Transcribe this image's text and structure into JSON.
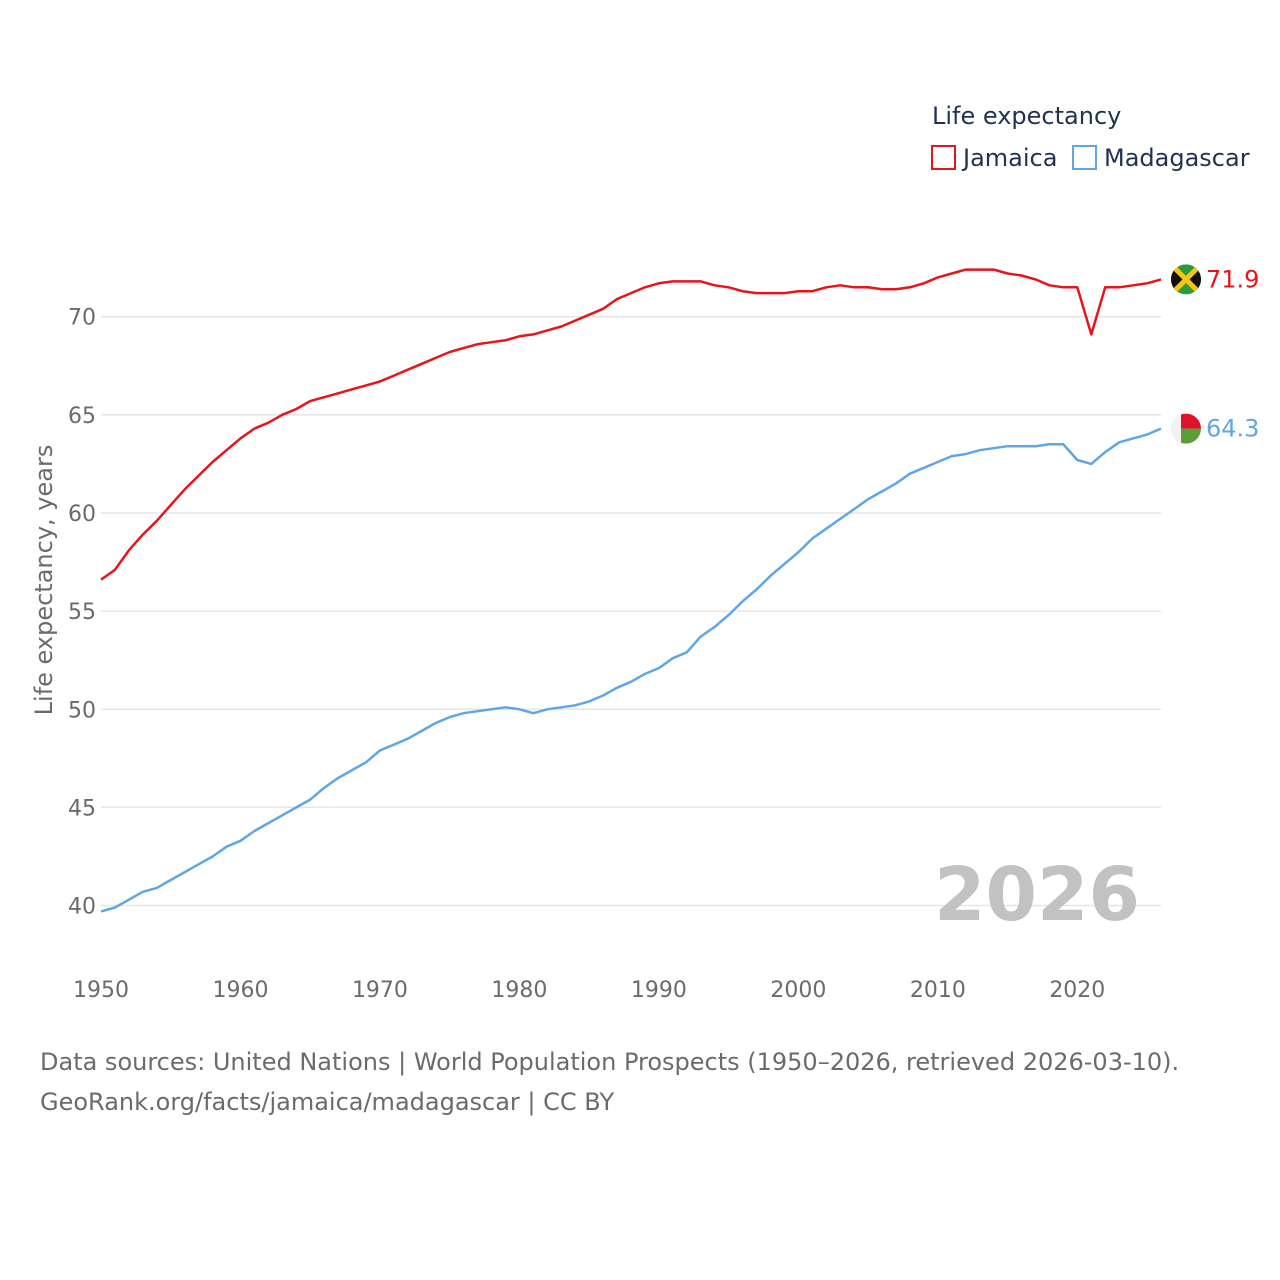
{
  "chart_data": {
    "type": "line",
    "legend_title": "Life expectancy",
    "legend_position": "top-right",
    "ylabel": "Life expectancy, years",
    "xlabel": "",
    "ylim": [
      38.5,
      73.5
    ],
    "xlim": [
      1950,
      2026
    ],
    "x_ticks": [
      1950,
      1960,
      1970,
      1980,
      1990,
      2000,
      2010,
      2020
    ],
    "y_ticks": [
      40,
      45,
      50,
      55,
      60,
      65,
      70
    ],
    "grid": true,
    "year_watermark": "2026",
    "x": [
      1950,
      1951,
      1952,
      1953,
      1954,
      1955,
      1956,
      1957,
      1958,
      1959,
      1960,
      1961,
      1962,
      1963,
      1964,
      1965,
      1966,
      1967,
      1968,
      1969,
      1970,
      1971,
      1972,
      1973,
      1974,
      1975,
      1976,
      1977,
      1978,
      1979,
      1980,
      1981,
      1982,
      1983,
      1984,
      1985,
      1986,
      1987,
      1988,
      1989,
      1990,
      1991,
      1992,
      1993,
      1994,
      1995,
      1996,
      1997,
      1998,
      1999,
      2000,
      2001,
      2002,
      2003,
      2004,
      2005,
      2006,
      2007,
      2008,
      2009,
      2010,
      2011,
      2012,
      2013,
      2014,
      2015,
      2016,
      2017,
      2018,
      2019,
      2020,
      2021,
      2022,
      2023,
      2024,
      2025,
      2026
    ],
    "series": [
      {
        "name": "Jamaica",
        "color": "#e8141b",
        "end_label": "71.9",
        "values": [
          56.6,
          57.1,
          58.1,
          58.9,
          59.6,
          60.4,
          61.2,
          61.9,
          62.6,
          63.2,
          63.8,
          64.3,
          64.6,
          65.0,
          65.3,
          65.7,
          65.9,
          66.1,
          66.3,
          66.5,
          66.7,
          67.0,
          67.3,
          67.6,
          67.9,
          68.2,
          68.4,
          68.6,
          68.7,
          68.8,
          69.0,
          69.1,
          69.3,
          69.5,
          69.8,
          70.1,
          70.4,
          70.9,
          71.2,
          71.5,
          71.7,
          71.8,
          71.8,
          71.8,
          71.6,
          71.5,
          71.3,
          71.2,
          71.2,
          71.2,
          71.3,
          71.3,
          71.5,
          71.6,
          71.5,
          71.5,
          71.4,
          71.4,
          71.5,
          71.7,
          72.0,
          72.2,
          72.4,
          72.4,
          72.4,
          72.2,
          72.1,
          71.9,
          71.6,
          71.5,
          71.5,
          69.1,
          71.5,
          71.5,
          71.6,
          71.7,
          71.9
        ]
      },
      {
        "name": "Madagascar",
        "color": "#5fa6e6",
        "end_label": "64.3",
        "values": [
          39.7,
          39.9,
          40.3,
          40.7,
          40.9,
          41.3,
          41.7,
          42.1,
          42.5,
          43.0,
          43.3,
          43.8,
          44.2,
          44.6,
          45.0,
          45.4,
          46.0,
          46.5,
          46.9,
          47.3,
          47.9,
          48.2,
          48.5,
          48.9,
          49.3,
          49.6,
          49.8,
          49.9,
          50.0,
          50.1,
          50.0,
          49.8,
          50.0,
          50.1,
          50.2,
          50.4,
          50.7,
          51.1,
          51.4,
          51.8,
          52.1,
          52.6,
          52.9,
          53.7,
          54.2,
          54.8,
          55.5,
          56.1,
          56.8,
          57.4,
          58.0,
          58.7,
          59.2,
          59.7,
          60.2,
          60.7,
          61.1,
          61.5,
          62.0,
          62.3,
          62.6,
          62.9,
          63.0,
          63.2,
          63.3,
          63.4,
          63.4,
          63.4,
          63.5,
          63.5,
          62.7,
          62.5,
          63.1,
          63.6,
          63.8,
          64.0,
          64.3
        ]
      }
    ]
  },
  "footer": {
    "line1": "Data sources: United Nations | World Population Prospects (1950–2026, retrieved 2026-03-10).",
    "line2": "GeoRank.org/facts/jamaica/madagascar | CC BY"
  },
  "flags": {
    "jamaica": {
      "green": "#2f9a3a",
      "gold": "#f5c518",
      "black": "#111111"
    },
    "madagascar": {
      "white": "#f2f2f2",
      "red": "#e0112b",
      "green": "#5a9e3c"
    }
  },
  "colors": {
    "grid": "#e6e6e6",
    "axis_text": "#6b6b6b",
    "legend_text": "#1f3350",
    "watermark": "#c2c2c2"
  }
}
